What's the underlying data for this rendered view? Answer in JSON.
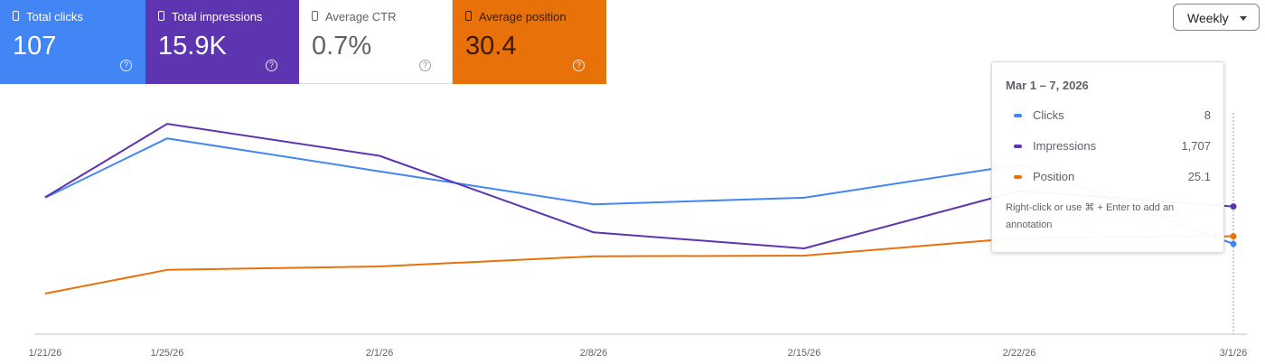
{
  "metrics": {
    "clicks": {
      "label": "Total clicks",
      "value": "107",
      "help": "?"
    },
    "impressions": {
      "label": "Total impressions",
      "value": "15.9K",
      "help": "?"
    },
    "ctr": {
      "label": "Average CTR",
      "value": "0.7%",
      "help": "?"
    },
    "position": {
      "label": "Average position",
      "value": "30.4",
      "help": "?"
    }
  },
  "granularity": {
    "selected": "Weekly"
  },
  "colors": {
    "clicks": "#4285f4",
    "impressions": "#5e35b1",
    "position": "#e8710a",
    "ctr_card": "#ffffff"
  },
  "chart_data": {
    "type": "line",
    "x": [
      "1/21/26",
      "1/25/26",
      "2/1/26",
      "2/8/26",
      "2/15/26",
      "2/22/26",
      "3/1/26"
    ],
    "tick_labels": [
      "1/21/26",
      "1/25/26",
      "2/1/26",
      "2/8/26",
      "2/15/26",
      "2/22/26",
      "3/1/26"
    ],
    "series": [
      {
        "name": "Clicks",
        "values": [
          15,
          24,
          19,
          14,
          15,
          20,
          8
        ]
      },
      {
        "name": "Impressions",
        "values": [
          1850,
          3000,
          2500,
          1300,
          1050,
          1950,
          1707
        ]
      },
      {
        "name": "Position",
        "values": [
          42,
          35,
          34,
          31,
          30.8,
          25.6,
          25.1
        ]
      }
    ],
    "grid": false,
    "legend": "none"
  },
  "tooltip": {
    "date": "Mar 1 – 7, 2026",
    "rows": [
      {
        "name": "Clicks",
        "value": "8"
      },
      {
        "name": "Impressions",
        "value": "1,707"
      },
      {
        "name": "Position",
        "value": "25.1"
      }
    ],
    "note": "Right-click or use ⌘ + Enter to add an annotation"
  }
}
